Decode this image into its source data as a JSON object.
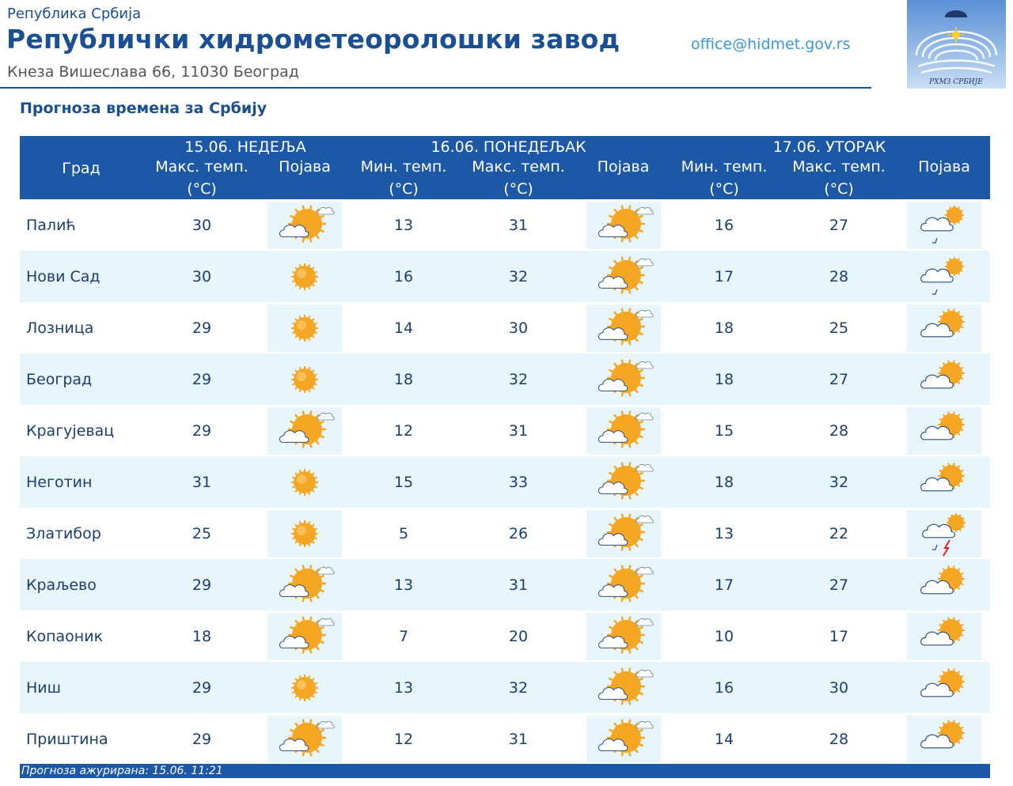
{
  "header": {
    "republic": "Република Србија",
    "institute": "Републички хидрометеоролошки завод",
    "address": "Кнеза Вишеслава 66, 11030  Београд",
    "email": "office@hidmet.gov.rs",
    "logo_text": "РХМЗ СРБИЈЕ"
  },
  "subtitle": "Прогноза времена за Србију",
  "table": {
    "city_header": "Град",
    "days": [
      "15.06. НЕДЕЉА",
      "16.06. ПОНЕДЕЉАК",
      "17.06. УТОРАК"
    ],
    "col_max": "Макс. темп.",
    "col_min": "Мин. темп.",
    "col_unit": "(°C)",
    "col_phen": "Појава",
    "rows": [
      {
        "city": "Палић",
        "d1_max": "30",
        "d1_icon": "partly-cloudy-icon",
        "d2_min": "13",
        "d2_max": "31",
        "d2_icon": "partly-cloudy-icon",
        "d3_min": "16",
        "d3_max": "27",
        "d3_icon": "cloudy-rain-icon"
      },
      {
        "city": "Нови Сад",
        "d1_max": "30",
        "d1_icon": "sun-icon",
        "d2_min": "16",
        "d2_max": "32",
        "d2_icon": "partly-cloudy-icon",
        "d3_min": "17",
        "d3_max": "28",
        "d3_icon": "cloudy-rain-icon"
      },
      {
        "city": "Лозница",
        "d1_max": "29",
        "d1_icon": "sun-icon",
        "d2_min": "14",
        "d2_max": "30",
        "d2_icon": "partly-cloudy-icon",
        "d3_min": "18",
        "d3_max": "25",
        "d3_icon": "mostly-cloudy-icon"
      },
      {
        "city": "Београд",
        "d1_max": "29",
        "d1_icon": "sun-icon",
        "d2_min": "18",
        "d2_max": "32",
        "d2_icon": "partly-cloudy-icon",
        "d3_min": "18",
        "d3_max": "27",
        "d3_icon": "mostly-cloudy-icon"
      },
      {
        "city": "Крагујевац",
        "d1_max": "29",
        "d1_icon": "partly-cloudy-icon",
        "d2_min": "12",
        "d2_max": "31",
        "d2_icon": "partly-cloudy-icon",
        "d3_min": "15",
        "d3_max": "28",
        "d3_icon": "mostly-cloudy-icon"
      },
      {
        "city": "Неготин",
        "d1_max": "31",
        "d1_icon": "sun-icon",
        "d2_min": "15",
        "d2_max": "33",
        "d2_icon": "partly-cloudy-icon",
        "d3_min": "18",
        "d3_max": "32",
        "d3_icon": "mostly-cloudy-icon"
      },
      {
        "city": "Златибор",
        "d1_max": "25",
        "d1_icon": "sun-icon",
        "d2_min": "5",
        "d2_max": "26",
        "d2_icon": "partly-cloudy-icon",
        "d3_min": "13",
        "d3_max": "22",
        "d3_icon": "thunderstorm-icon"
      },
      {
        "city": "Краљево",
        "d1_max": "29",
        "d1_icon": "partly-cloudy-icon",
        "d2_min": "13",
        "d2_max": "31",
        "d2_icon": "partly-cloudy-icon",
        "d3_min": "17",
        "d3_max": "27",
        "d3_icon": "mostly-cloudy-icon"
      },
      {
        "city": "Копаоник",
        "d1_max": "18",
        "d1_icon": "partly-cloudy-icon",
        "d2_min": "7",
        "d2_max": "20",
        "d2_icon": "partly-cloudy-icon",
        "d3_min": "10",
        "d3_max": "17",
        "d3_icon": "mostly-cloudy-icon"
      },
      {
        "city": "Ниш",
        "d1_max": "29",
        "d1_icon": "sun-icon",
        "d2_min": "13",
        "d2_max": "32",
        "d2_icon": "partly-cloudy-icon",
        "d3_min": "16",
        "d3_max": "30",
        "d3_icon": "mostly-cloudy-icon"
      },
      {
        "city": "Приштина",
        "d1_max": "29",
        "d1_icon": "partly-cloudy-icon",
        "d2_min": "12",
        "d2_max": "31",
        "d2_icon": "partly-cloudy-icon",
        "d3_min": "14",
        "d3_max": "28",
        "d3_icon": "mostly-cloudy-icon"
      }
    ]
  },
  "footer": "Прогноза ажурирана:   15.06. 11:21",
  "colors": {
    "brand_blue": "#1d58a7",
    "title_blue": "#1b4f93",
    "link_blue": "#3a99d8",
    "row_alt": "#e8f6fc",
    "sun": "#f5a623"
  }
}
